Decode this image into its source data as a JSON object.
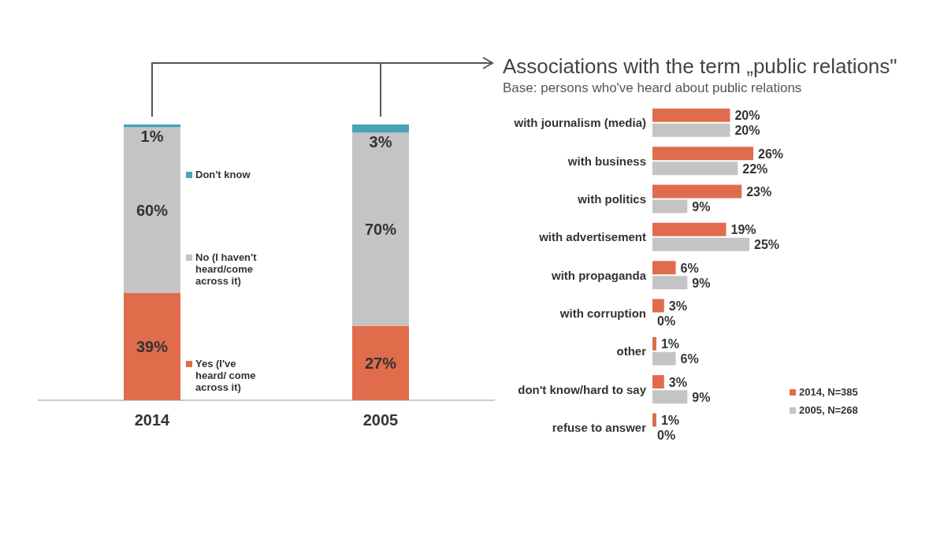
{
  "chart_data": [
    {
      "type": "bar",
      "stacked": true,
      "categories": [
        "2014",
        "2005"
      ],
      "legend": "center",
      "series": [
        {
          "name": "Yes (I've heard/ come across it)",
          "color": "#e06c4c",
          "values": [
            39,
            27
          ],
          "value_labels": [
            "39%",
            "27%"
          ]
        },
        {
          "name": "No (I haven't heard/come across it)",
          "color": "#c4c4c4",
          "values": [
            60,
            70
          ],
          "value_labels": [
            "60%",
            "70%"
          ]
        },
        {
          "name": "Don't know",
          "color": "#4aa3b5",
          "values": [
            1,
            3
          ],
          "value_labels": [
            "1%",
            "3%"
          ]
        }
      ]
    },
    {
      "type": "bar",
      "orientation": "horizontal",
      "title": "Associations with the term „public relations\"",
      "subtitle": "Base: persons who've heard about public relations",
      "categories": [
        "with journalism (media)",
        "with business",
        "with politics",
        "with advertisement",
        "with propaganda",
        "with corruption",
        "other",
        "don't know/hard to say",
        "refuse to answer"
      ],
      "legend": "bottom right",
      "series": [
        {
          "name": "2014, N=385",
          "color": "#e06c4c",
          "values": [
            20,
            26,
            23,
            19,
            6,
            3,
            1,
            3,
            1
          ],
          "value_labels": [
            "20%",
            "26%",
            "23%",
            "19%",
            "6%",
            "3%",
            "1%",
            "3%",
            "1%"
          ]
        },
        {
          "name": "2005, N=268",
          "color": "#c4c4c4",
          "values": [
            20,
            22,
            9,
            25,
            9,
            0,
            6,
            9,
            0
          ],
          "value_labels": [
            "20%",
            "22%",
            "9%",
            "25%",
            "9%",
            "0%",
            "6%",
            "9%",
            "0%"
          ]
        }
      ]
    }
  ]
}
